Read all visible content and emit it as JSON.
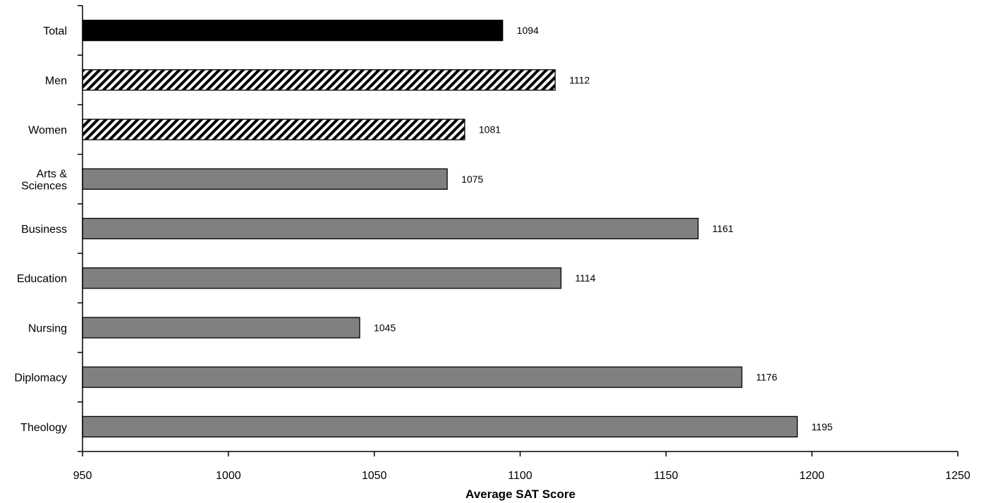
{
  "chart_data": {
    "type": "bar",
    "orientation": "horizontal",
    "categories": [
      "Total",
      "Men",
      "Women",
      "Arts & Sciences",
      "Business",
      "Education",
      "Nursing",
      "Diplomacy",
      "Theology"
    ],
    "category_lines": [
      [
        "Total"
      ],
      [
        "Men"
      ],
      [
        "Women"
      ],
      [
        "Arts &",
        "Sciences"
      ],
      [
        "Business"
      ],
      [
        "Education"
      ],
      [
        "Nursing"
      ],
      [
        "Diplomacy"
      ],
      [
        "Theology"
      ]
    ],
    "values": [
      1094,
      1112,
      1081,
      1075,
      1161,
      1114,
      1045,
      1176,
      1195
    ],
    "value_labels": [
      "1094",
      "1112",
      "1081",
      "1075",
      "1161",
      "1114",
      "1045",
      "1176",
      "1195"
    ],
    "bar_styles": [
      "solid-black",
      "hatched",
      "hatched",
      "solid-gray",
      "solid-gray",
      "solid-gray",
      "solid-gray",
      "solid-gray",
      "solid-gray"
    ],
    "colors": {
      "total": "#000000",
      "hatch": "#000000",
      "bar": "#808080",
      "outline": "#000000"
    },
    "title": "",
    "xlabel": "Average SAT Score",
    "ylabel": "",
    "xlim": [
      950,
      1250
    ],
    "xticks": [
      950,
      1000,
      1050,
      1100,
      1150,
      1200,
      1250
    ],
    "xtick_labels": [
      "950",
      "1000",
      "1050",
      "1100",
      "1150",
      "1200",
      "1250"
    ],
    "grid": false,
    "legend": "none"
  }
}
